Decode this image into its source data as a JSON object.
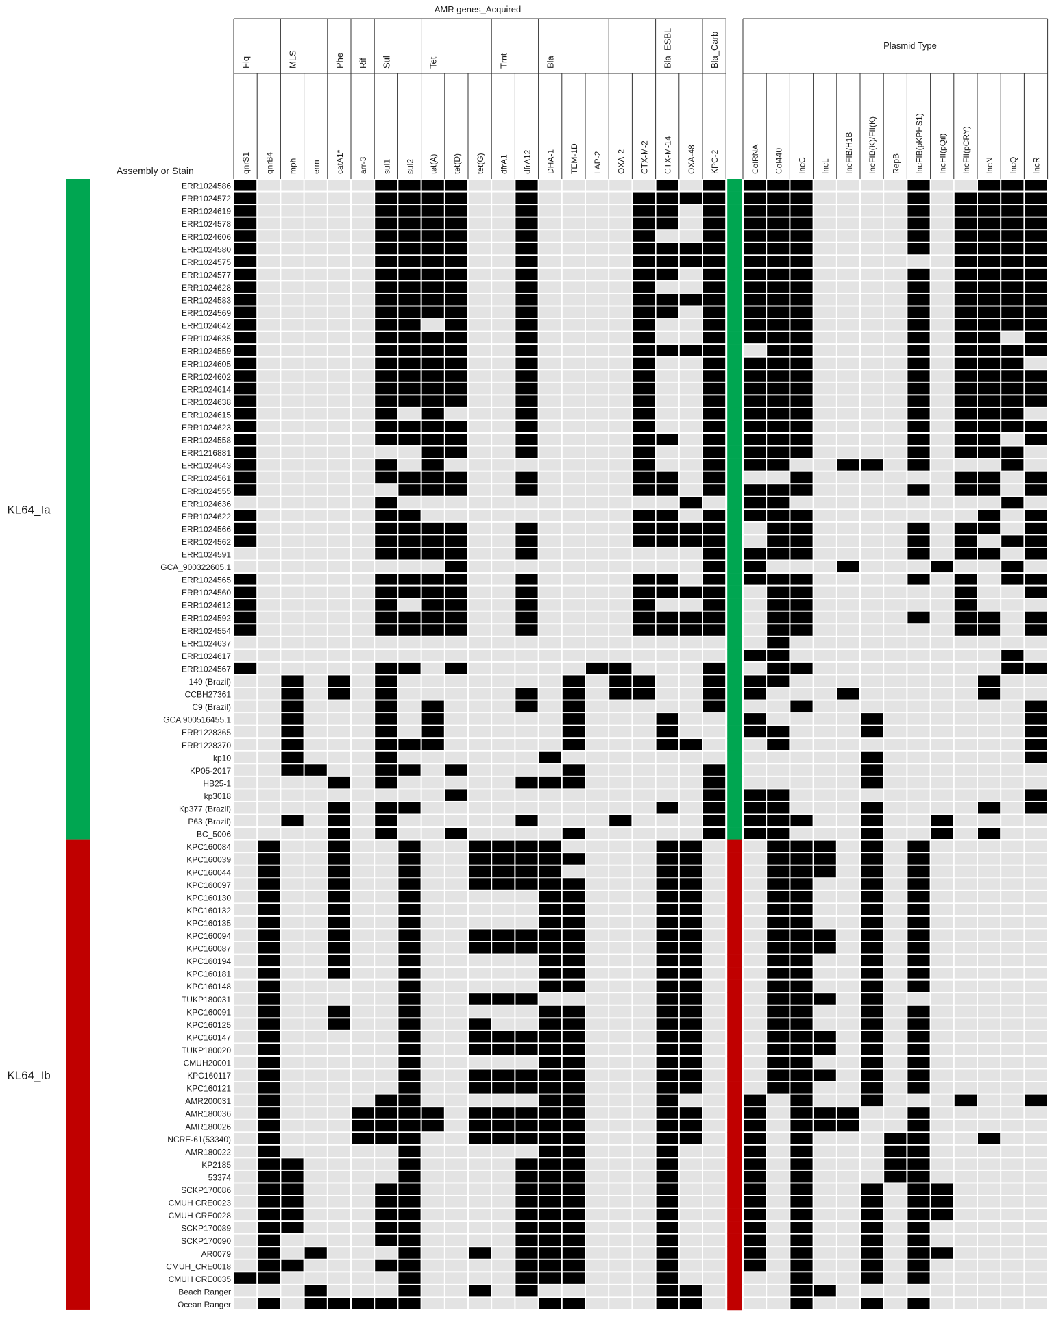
{
  "chart_data": {
    "type": "heatmap",
    "title": "",
    "row_axis_label": "Assembly or Stain",
    "amr_header": "AMR genes_Acquired",
    "plasmid_header": "Plasmid Type",
    "amr_groups": [
      {
        "name": "Flq",
        "span": 2
      },
      {
        "name": "MLS",
        "span": 2
      },
      {
        "name": "Phe",
        "span": 1
      },
      {
        "name": "Rif",
        "span": 1
      },
      {
        "name": "Sul",
        "span": 2
      },
      {
        "name": "Tet",
        "span": 3
      },
      {
        "name": "Tmt",
        "span": 2
      },
      {
        "name": "Bla",
        "span": 3
      },
      {
        "name": "",
        "span": 2
      },
      {
        "name": "Bla_ESBL",
        "span": 2
      },
      {
        "name": "Bla_Carb",
        "span": 1
      }
    ],
    "amr_columns": [
      "qnrS1",
      "qnrB4",
      "mph",
      "erm",
      "catA1*",
      "arr-3",
      "sul1",
      "sul2",
      "tet(A)",
      "tet(D)",
      "tet(G)",
      "dfrA1",
      "dfrA12",
      "DHA-1",
      "TEM-1D",
      "LAP-2",
      "OXA-2",
      "CTX-M-2",
      "CTX-M-14",
      "OXA-48",
      "KPC-2"
    ],
    "plasmid_columns": [
      "ColRNA",
      "Col440",
      "IncC",
      "IncL",
      "IncFIB/H1B",
      "IncFIB(K)/FII(K)",
      "RepB",
      "IncFIB(pKPHS1)",
      "IncFII(pQil)",
      "IncFII(pCRY)",
      "IncN",
      "IncQ",
      "IncR"
    ],
    "groups": [
      {
        "name": "KL64_Ia",
        "color": "#00a651",
        "start_row": 0,
        "row_count": 52
      },
      {
        "name": "KL64_Ib",
        "color": "#c00000",
        "start_row": 52,
        "row_count": 37
      }
    ],
    "present_color": "#000000",
    "absent_color": "#e3e3e3",
    "rows": [
      {
        "name": "ERR1024586",
        "amr": "100000111100100000101",
        "plasmid": "1110000100111"
      },
      {
        "name": "ERR1024572",
        "amr": "100000111100100001111",
        "plasmid": "1110000101111"
      },
      {
        "name": "ERR1024619",
        "amr": "100000111100100001101",
        "plasmid": "1110000101111"
      },
      {
        "name": "ERR1024578",
        "amr": "100000111100100001101",
        "plasmid": "1110000101111"
      },
      {
        "name": "ERR1024606",
        "amr": "100000111100100001001",
        "plasmid": "1110000101111"
      },
      {
        "name": "ERR1024580",
        "amr": "100000111100100001111",
        "plasmid": "1110000101111"
      },
      {
        "name": "ERR1024575",
        "amr": "100000111100100001111",
        "plasmid": "1110000001111"
      },
      {
        "name": "ERR1024577",
        "amr": "100000111100100001101",
        "plasmid": "1110000101111"
      },
      {
        "name": "ERR1024628",
        "amr": "100000111100100001001",
        "plasmid": "1110000101111"
      },
      {
        "name": "ERR1024583",
        "amr": "100000111100100001111",
        "plasmid": "1110000101111"
      },
      {
        "name": "ERR1024569",
        "amr": "100000111100100001101",
        "plasmid": "1110000101111"
      },
      {
        "name": "ERR1024642",
        "amr": "100000110100100001001",
        "plasmid": "1110000101111"
      },
      {
        "name": "ERR1024635",
        "amr": "100000111100100001001",
        "plasmid": "1110000101101"
      },
      {
        "name": "ERR1024559",
        "amr": "100000111100100001111",
        "plasmid": "0110000101111"
      },
      {
        "name": "ERR1024605",
        "amr": "100000111100100001001",
        "plasmid": "1110000101110"
      },
      {
        "name": "ERR1024602",
        "amr": "100000111100100001001",
        "plasmid": "1110000101111"
      },
      {
        "name": "ERR1024614",
        "amr": "100000111100100001001",
        "plasmid": "1110000101111"
      },
      {
        "name": "ERR1024638",
        "amr": "100000111100100001001",
        "plasmid": "1110000101111"
      },
      {
        "name": "ERR1024615",
        "amr": "100000101000100001001",
        "plasmid": "1110000101110"
      },
      {
        "name": "ERR1024623",
        "amr": "100000111100100001001",
        "plasmid": "1110000101111"
      },
      {
        "name": "ERR1024558",
        "amr": "100000111100100001101",
        "plasmid": "1110000101101"
      },
      {
        "name": "ERR1216881",
        "amr": "100000001100100001001",
        "plasmid": "1110000101110"
      },
      {
        "name": "ERR1024643",
        "amr": "100000101000000001001",
        "plasmid": "1100110100010"
      },
      {
        "name": "ERR1024561",
        "amr": "100000111100100001101",
        "plasmid": "0010000001101"
      },
      {
        "name": "ERR1024555",
        "amr": "100000011100100001101",
        "plasmid": "1110000101101"
      },
      {
        "name": "ERR1024636",
        "amr": "000000100000000000010",
        "plasmid": "1100000000010"
      },
      {
        "name": "ERR1024622",
        "amr": "100000110000000001101",
        "plasmid": "1110000000101"
      },
      {
        "name": "ERR1024566",
        "amr": "100000111100100001111",
        "plasmid": "0110000101101"
      },
      {
        "name": "ERR1024562",
        "amr": "100000111100100001111",
        "plasmid": "0110000101011"
      },
      {
        "name": "ERR1024591",
        "amr": "000000111100100000001",
        "plasmid": "1110000101101"
      },
      {
        "name": "GCA_900322605.1",
        "amr": "000000000100000000001",
        "plasmid": "1000100010010"
      },
      {
        "name": "ERR1024565",
        "amr": "100000111100100001101",
        "plasmid": "1110000101011"
      },
      {
        "name": "ERR1024560",
        "amr": "100000111100100001111",
        "plasmid": "0110000001001"
      },
      {
        "name": "ERR1024612",
        "amr": "100000101100100001001",
        "plasmid": "0110000001000"
      },
      {
        "name": "ERR1024592",
        "amr": "100000111100100001111",
        "plasmid": "0110000101101"
      },
      {
        "name": "ERR1024554",
        "amr": "100000111100100001111",
        "plasmid": "0110000001101"
      },
      {
        "name": "ERR1024637",
        "amr": "000000000000000000000",
        "plasmid": "0100000000000"
      },
      {
        "name": "ERR1024617",
        "amr": "000000000000000000000",
        "plasmid": "1100000000010"
      },
      {
        "name": "ERR1024567",
        "amr": "100000110100000110001",
        "plasmid": "0110000000011"
      },
      {
        "name": "149 (Brazil)",
        "amr": "001010100000001011001",
        "plasmid": "1100000000100"
      },
      {
        "name": "CCBH27361",
        "amr": "001010100000101011001",
        "plasmid": "1000100000100"
      },
      {
        "name": "C9 (Brazil)",
        "amr": "001000101000101000001",
        "plasmid": "0010000000001"
      },
      {
        "name": "GCA  900516455.1",
        "amr": "001000101000001000100",
        "plasmid": "1000010000001"
      },
      {
        "name": "ERR1228365",
        "amr": "001000101000001000100",
        "plasmid": "1100010000001"
      },
      {
        "name": "ERR1228370",
        "amr": "001000111000001000110",
        "plasmid": "0100000000001"
      },
      {
        "name": "kp10",
        "amr": "001000100000010000000",
        "plasmid": "0000010000001"
      },
      {
        "name": "KP05-2017",
        "amr": "001100110100001000001",
        "plasmid": "0000010000000"
      },
      {
        "name": "HB25-1",
        "amr": "000010100000111000001",
        "plasmid": "0000010000000"
      },
      {
        "name": "kp3018",
        "amr": "000000000100000000001",
        "plasmid": "1100000000001"
      },
      {
        "name": "Kp377 (Brazil)",
        "amr": "000010110000000000101",
        "plasmid": "1100010000101"
      },
      {
        "name": "P63 (Brazil)",
        "amr": "001010100000100010001",
        "plasmid": "1110010010000"
      },
      {
        "name": "BC_5006",
        "amr": "000010100100001000001",
        "plasmid": "1100010010100"
      },
      {
        "name": "KPC160084",
        "amr": "010010010011110000110",
        "plasmid": "0111010100000"
      },
      {
        "name": "KPC160039",
        "amr": "010010010011111000110",
        "plasmid": "0111010100000"
      },
      {
        "name": "KPC160044",
        "amr": "010010010011110000110",
        "plasmid": "0111010100000"
      },
      {
        "name": "KPC160097",
        "amr": "010010010011111000110",
        "plasmid": "0110010100000"
      },
      {
        "name": "KPC160130",
        "amr": "010010010000011000110",
        "plasmid": "0110010100000"
      },
      {
        "name": "KPC160132",
        "amr": "010010010000011000110",
        "plasmid": "0110010100000"
      },
      {
        "name": "KPC160135",
        "amr": "010010010000011000110",
        "plasmid": "0110010100000"
      },
      {
        "name": "KPC160094",
        "amr": "010010010011111000110",
        "plasmid": "0111010100000"
      },
      {
        "name": "KPC160087",
        "amr": "010010010011111000110",
        "plasmid": "0111010100000"
      },
      {
        "name": "KPC160194",
        "amr": "010010010000011000110",
        "plasmid": "0110010100000"
      },
      {
        "name": "KPC160181",
        "amr": "010010010000011000110",
        "plasmid": "0110010100000"
      },
      {
        "name": "KPC160148",
        "amr": "010000010000011000110",
        "plasmid": "0110010100000"
      },
      {
        "name": "TUKP180031",
        "amr": "010000010011100000110",
        "plasmid": "0111010000000"
      },
      {
        "name": "KPC160091",
        "amr": "010010010000011000110",
        "plasmid": "0110010100000"
      },
      {
        "name": "KPC160125",
        "amr": "010010010010011000110",
        "plasmid": "0110010100000"
      },
      {
        "name": "KPC160147",
        "amr": "010000010011111000110",
        "plasmid": "0111010100000"
      },
      {
        "name": "TUKP180020",
        "amr": "010000010011111000110",
        "plasmid": "0111010100000"
      },
      {
        "name": "CMUH20001",
        "amr": "010000010000011000110",
        "plasmid": "0110010100000"
      },
      {
        "name": "KPC160117",
        "amr": "010000010011111000110",
        "plasmid": "0111010100000"
      },
      {
        "name": "KPC160121",
        "amr": "010000010011111000110",
        "plasmid": "0110010100000"
      },
      {
        "name": "AMR200031",
        "amr": "010000110000011000100",
        "plasmid": "1010010001001"
      },
      {
        "name": "AMR180036",
        "amr": "010001111011111000110",
        "plasmid": "1011100100000"
      },
      {
        "name": "AMR180026",
        "amr": "010001111011111000110",
        "plasmid": "1011100100000"
      },
      {
        "name": "NCRE-61(53340)",
        "amr": "010001110011111000110",
        "plasmid": "1010001100100"
      },
      {
        "name": "AMR180022",
        "amr": "010000010000011000100",
        "plasmid": "1010001100000"
      },
      {
        "name": "KP2185",
        "amr": "011000010000111000100",
        "plasmid": "1010001100000"
      },
      {
        "name": "53374",
        "amr": "011000010000111000100",
        "plasmid": "1010001100000"
      },
      {
        "name": "SCKP170086",
        "amr": "011000110000111000100",
        "plasmid": "1010010110000"
      },
      {
        "name": "CMUH  CRE0023",
        "amr": "011000110000111000100",
        "plasmid": "1010010110000"
      },
      {
        "name": "CMUH  CRE0028",
        "amr": "011000110000111000100",
        "plasmid": "1010010110000"
      },
      {
        "name": "SCKP170089",
        "amr": "011000110000111000100",
        "plasmid": "1010010100000"
      },
      {
        "name": "SCKP170090",
        "amr": "010000110000111000100",
        "plasmid": "1010010100000"
      },
      {
        "name": "AR0079",
        "amr": "010100010010111000100",
        "plasmid": "1010010110000"
      },
      {
        "name": "CMUH_CRE0018",
        "amr": "011000110000111000100",
        "plasmid": "1010010100000"
      },
      {
        "name": "CMUH  CRE0035",
        "amr": "110000010000111000100",
        "plasmid": "0010010100000"
      },
      {
        "name": "Beach Ranger",
        "amr": "000100010010100000110",
        "plasmid": "0011000000000"
      },
      {
        "name": "Ocean Ranger",
        "amr": "010111110000011000110",
        "plasmid": "0010010100000"
      }
    ]
  }
}
